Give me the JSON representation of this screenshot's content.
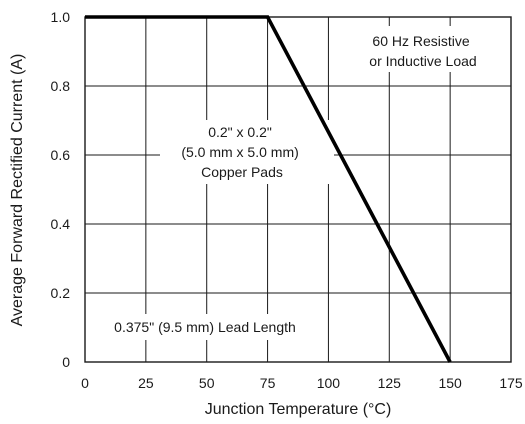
{
  "chart_data": {
    "type": "line",
    "xlabel": "Junction Temperature (°C)",
    "ylabel": "Average Forward Rectified Current (A)",
    "xlim": [
      0,
      175
    ],
    "ylim": [
      0,
      1.0
    ],
    "x_ticks": [
      "0",
      "25",
      "50",
      "75",
      "100",
      "125",
      "150",
      "175"
    ],
    "y_ticks": [
      "0",
      "0.2",
      "0.4",
      "0.6",
      "0.8",
      "1.0"
    ],
    "grid": true,
    "series": [
      {
        "x": [
          0,
          75,
          150
        ],
        "y": [
          1.0,
          1.0,
          0
        ]
      }
    ],
    "annotations": [
      {
        "lines": [
          "60 Hz Resistive",
          "or Inductive Load"
        ]
      },
      {
        "lines": [
          "0.2\" x 0.2\"",
          "(5.0 mm x 5.0 mm)",
          "Copper Pads"
        ]
      },
      {
        "lines": [
          "0.375\" (9.5 mm) Lead Length"
        ]
      }
    ]
  }
}
